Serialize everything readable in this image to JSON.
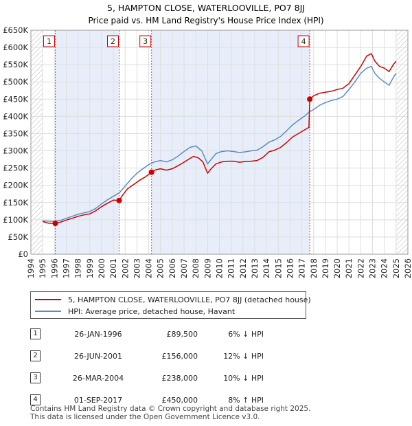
{
  "chart_data": {
    "type": "line",
    "title": "5, HAMPTON CLOSE, WATERLOOVILLE, PO7 8JJ",
    "subtitle": "Price paid vs. HM Land Registry's House Price Index (HPI)",
    "xlim": [
      1994,
      2026
    ],
    "ylim": [
      0,
      650000
    ],
    "x_ticks": [
      1994,
      1995,
      1996,
      1997,
      1998,
      1999,
      2000,
      2001,
      2002,
      2003,
      2004,
      2005,
      2006,
      2007,
      2008,
      2009,
      2010,
      2011,
      2012,
      2013,
      2014,
      2015,
      2016,
      2017,
      2018,
      2019,
      2020,
      2021,
      2022,
      2023,
      2024,
      2025,
      2026
    ],
    "y_ticks": [
      {
        "value": 0,
        "label": "£0"
      },
      {
        "value": 50000,
        "label": "£50K"
      },
      {
        "value": 100000,
        "label": "£100K"
      },
      {
        "value": 150000,
        "label": "£150K"
      },
      {
        "value": 200000,
        "label": "£200K"
      },
      {
        "value": 250000,
        "label": "£250K"
      },
      {
        "value": 300000,
        "label": "£300K"
      },
      {
        "value": 350000,
        "label": "£350K"
      },
      {
        "value": 400000,
        "label": "£400K"
      },
      {
        "value": 450000,
        "label": "£450K"
      },
      {
        "value": 500000,
        "label": "£500K"
      },
      {
        "value": 550000,
        "label": "£550K"
      },
      {
        "value": 600000,
        "label": "£600K"
      },
      {
        "value": 650000,
        "label": "£650K"
      }
    ],
    "hatch_before": 1995,
    "hatch_after": 2025,
    "shade_regions": [
      [
        1996.07,
        2001.49
      ],
      [
        2004.24,
        2017.67
      ]
    ],
    "series": [
      {
        "name": "5, HAMPTON CLOSE, WATERLOOVILLE, PO7 8JJ (detached house)",
        "color": "#cc0000",
        "x": [
          1995.0,
          1995.5,
          1996.07,
          1996.5,
          1997.0,
          1997.5,
          1998.0,
          1998.5,
          1999.0,
          1999.5,
          2000.0,
          2000.5,
          2001.0,
          2001.49,
          2001.8,
          2002.2,
          2002.7,
          2003.2,
          2003.7,
          2004.24,
          2004.6,
          2005.0,
          2005.5,
          2006.0,
          2006.5,
          2007.0,
          2007.4,
          2007.8,
          2008.2,
          2008.6,
          2009.0,
          2009.3,
          2009.7,
          2010.2,
          2010.7,
          2011.2,
          2011.7,
          2012.2,
          2012.7,
          2013.2,
          2013.7,
          2014.2,
          2014.7,
          2015.2,
          2015.7,
          2016.2,
          2016.7,
          2017.2,
          2017.6,
          2017.67,
          2018.0,
          2018.5,
          2019.0,
          2019.5,
          2020.0,
          2020.5,
          2021.0,
          2021.5,
          2022.0,
          2022.5,
          2022.9,
          2023.2,
          2023.6,
          2024.0,
          2024.4,
          2024.8,
          2025.0
        ],
        "values": [
          95000,
          90000,
          89500,
          93000,
          99000,
          104000,
          110000,
          114000,
          117000,
          126000,
          138000,
          148000,
          157000,
          156000,
          172000,
          190000,
          202000,
          214000,
          224000,
          238000,
          245000,
          248000,
          244000,
          248000,
          257000,
          267000,
          276000,
          284000,
          280000,
          268000,
          235000,
          248000,
          262000,
          268000,
          270000,
          270000,
          267000,
          269000,
          270000,
          272000,
          281000,
          297000,
          302000,
          310000,
          324000,
          340000,
          350000,
          360000,
          368000,
          450000,
          460000,
          467000,
          470000,
          473000,
          478000,
          482000,
          495000,
          520000,
          545000,
          575000,
          582000,
          560000,
          545000,
          540000,
          530000,
          552000,
          560000
        ]
      },
      {
        "name": "HPI: Average price, detached house, Havant",
        "color": "#5b8cc0",
        "x": [
          1995.0,
          1995.5,
          1996.0,
          1996.5,
          1997.0,
          1997.5,
          1998.0,
          1998.5,
          1999.0,
          1999.5,
          2000.0,
          2000.5,
          2001.0,
          2001.5,
          2002.0,
          2002.5,
          2003.0,
          2003.5,
          2004.0,
          2004.5,
          2005.0,
          2005.5,
          2006.0,
          2006.5,
          2007.0,
          2007.5,
          2008.0,
          2008.5,
          2009.0,
          2009.3,
          2009.7,
          2010.2,
          2010.7,
          2011.2,
          2011.7,
          2012.2,
          2012.7,
          2013.2,
          2013.7,
          2014.2,
          2014.7,
          2015.2,
          2015.7,
          2016.2,
          2016.7,
          2017.2,
          2017.6,
          2018.0,
          2018.5,
          2019.0,
          2019.5,
          2020.0,
          2020.5,
          2021.0,
          2021.5,
          2022.0,
          2022.5,
          2022.9,
          2023.2,
          2023.6,
          2024.0,
          2024.4,
          2024.8,
          2025.0
        ],
        "values": [
          97000,
          96000,
          95500,
          98000,
          104000,
          110000,
          116000,
          120000,
          124000,
          133000,
          146000,
          158000,
          168000,
          178000,
          198000,
          218000,
          235000,
          248000,
          260000,
          268000,
          272000,
          268000,
          274000,
          285000,
          298000,
          310000,
          314000,
          300000,
          262000,
          275000,
          292000,
          298000,
          300000,
          298000,
          295000,
          297000,
          300000,
          302000,
          312000,
          325000,
          332000,
          342000,
          358000,
          375000,
          388000,
          400000,
          412000,
          420000,
          432000,
          440000,
          446000,
          450000,
          458000,
          478000,
          500000,
          525000,
          540000,
          545000,
          525000,
          510000,
          500000,
          490000,
          515000,
          525000
        ]
      }
    ],
    "sale_points": [
      {
        "label": "1",
        "x": 1996.07,
        "value": 89500
      },
      {
        "label": "2",
        "x": 2001.49,
        "value": 156000
      },
      {
        "label": "3",
        "x": 2004.24,
        "value": 238000
      },
      {
        "label": "4",
        "x": 2017.67,
        "value": 450000
      }
    ],
    "marker_color": "#cc0000"
  },
  "legend": {
    "property_label": "5, HAMPTON CLOSE, WATERLOOVILLE, PO7 8JJ (detached house)",
    "hpi_label": "HPI: Average price, detached house, Havant"
  },
  "sales": [
    {
      "num": "1",
      "date": "26-JAN-1996",
      "price": "£89,500",
      "hpi": "6% ↓ HPI"
    },
    {
      "num": "2",
      "date": "26-JUN-2001",
      "price": "£156,000",
      "hpi": "12% ↓ HPI"
    },
    {
      "num": "3",
      "date": "26-MAR-2004",
      "price": "£238,000",
      "hpi": "10% ↓ HPI"
    },
    {
      "num": "4",
      "date": "01-SEP-2017",
      "price": "£450,000",
      "hpi": "8% ↑ HPI"
    }
  ],
  "footer": {
    "line1": "Contains HM Land Registry data © Crown copyright and database right 2025.",
    "line2": "This data is licensed under the Open Government Licence v3.0."
  }
}
